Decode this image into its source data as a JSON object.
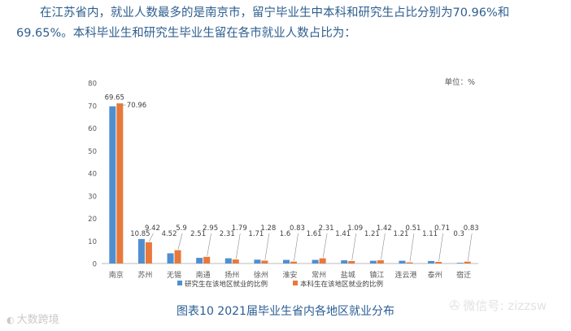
{
  "intro": {
    "line1": "在江苏省内，就业人数最多的是南京市，留宁毕业生中本科和研究生占比分别为70.96%和",
    "line2": "69.65%。本科毕业生和研究生毕业生留在各市就业人数占比为："
  },
  "caption": "图表10    2021届毕业生省内各地区就业分布",
  "watermarks": {
    "left": "大数跨境",
    "right": "微信号: zizzsw"
  },
  "colors": {
    "graduate": "#4f8fd0",
    "undergraduate": "#e8793b",
    "intro_text": "#2f5f8f",
    "caption_text": "#2a5d93"
  },
  "chart_data": {
    "type": "bar",
    "unit_label": "单位：%",
    "categories": [
      "南京",
      "苏州",
      "无锡",
      "南通",
      "扬州",
      "徐州",
      "淮安",
      "常州",
      "盐城",
      "镇江",
      "连云港",
      "泰州",
      "宿迁"
    ],
    "series": [
      {
        "name": "研究生在该地区就业的比例",
        "values": [
          69.65,
          10.85,
          4.52,
          2.51,
          2.31,
          1.71,
          1.6,
          1.61,
          1.41,
          1.21,
          1.21,
          1.11,
          0.3
        ],
        "labels": [
          "69.65",
          "10.85",
          "4.52",
          "2.51",
          "2.31",
          "1.71",
          "1.6",
          "1.61",
          "1.41",
          "1.21",
          "1.21",
          "1.11",
          "0.3"
        ]
      },
      {
        "name": "本科生在该地区就业的比例",
        "values": [
          70.96,
          9.42,
          5.9,
          2.95,
          1.79,
          1.28,
          0.83,
          2.31,
          1.09,
          1.42,
          0.51,
          0.71,
          0.83
        ],
        "labels": [
          "70.96",
          "9.42",
          "5.9",
          "2.95",
          "1.79",
          "1.28",
          "0.83",
          "2.31",
          "1.09",
          "1.42",
          "0.51",
          "0.71",
          "0.83"
        ]
      }
    ],
    "yticks": [
      "0",
      "10",
      "20",
      "30",
      "40",
      "50",
      "60",
      "70",
      "80"
    ],
    "ylim": [
      0,
      80
    ],
    "grid": false,
    "legend": "bottom"
  }
}
